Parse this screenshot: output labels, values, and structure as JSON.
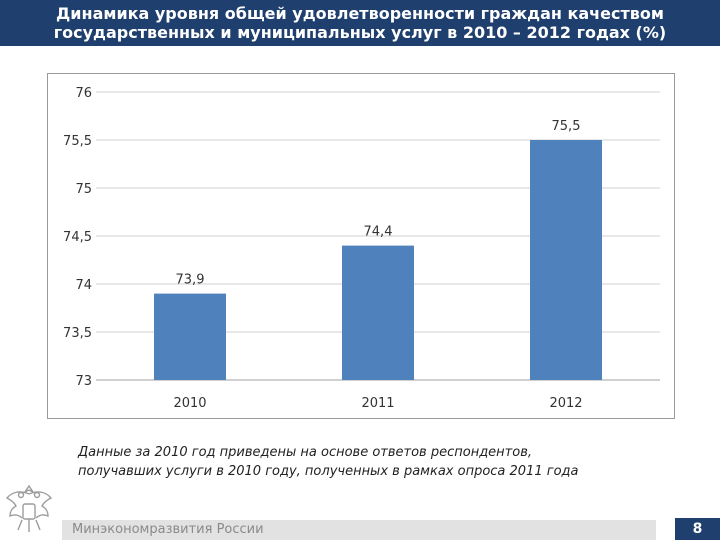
{
  "header": {
    "title_line1": "Динамика уровня общей удовлетворенности граждан качеством",
    "title_line2": "государственных и муниципальных услуг в 2010 – 2012 годах (%)"
  },
  "chart_data": {
    "type": "bar",
    "categories": [
      "2010",
      "2011",
      "2012"
    ],
    "values": [
      73.9,
      74.4,
      75.5
    ],
    "data_labels": [
      "73,9",
      "74,4",
      "75,5"
    ],
    "ylim": [
      73,
      76
    ],
    "yticks": [
      "73",
      "73,5",
      "74",
      "74,5",
      "75",
      "75,5",
      "76"
    ],
    "ytick_values": [
      73,
      73.5,
      74,
      74.5,
      75,
      75.5,
      76
    ],
    "grid": true,
    "bar_color": "#4f81bd",
    "title": "",
    "xlabel": "",
    "ylabel": ""
  },
  "note": {
    "line1": "Данные за 2010 год приведены на основе ответов респондентов,",
    "line2": "получавших услуги в 2010 году, полученных в рамках опроса 2011 года"
  },
  "footer": {
    "ministry": "Минэкономразвития России",
    "page_number": "8"
  },
  "colors": {
    "header_bg": "#1f3f6e",
    "bar": "#4f81bd"
  },
  "icons": {
    "emblem": "coat-of-arms-icon"
  }
}
